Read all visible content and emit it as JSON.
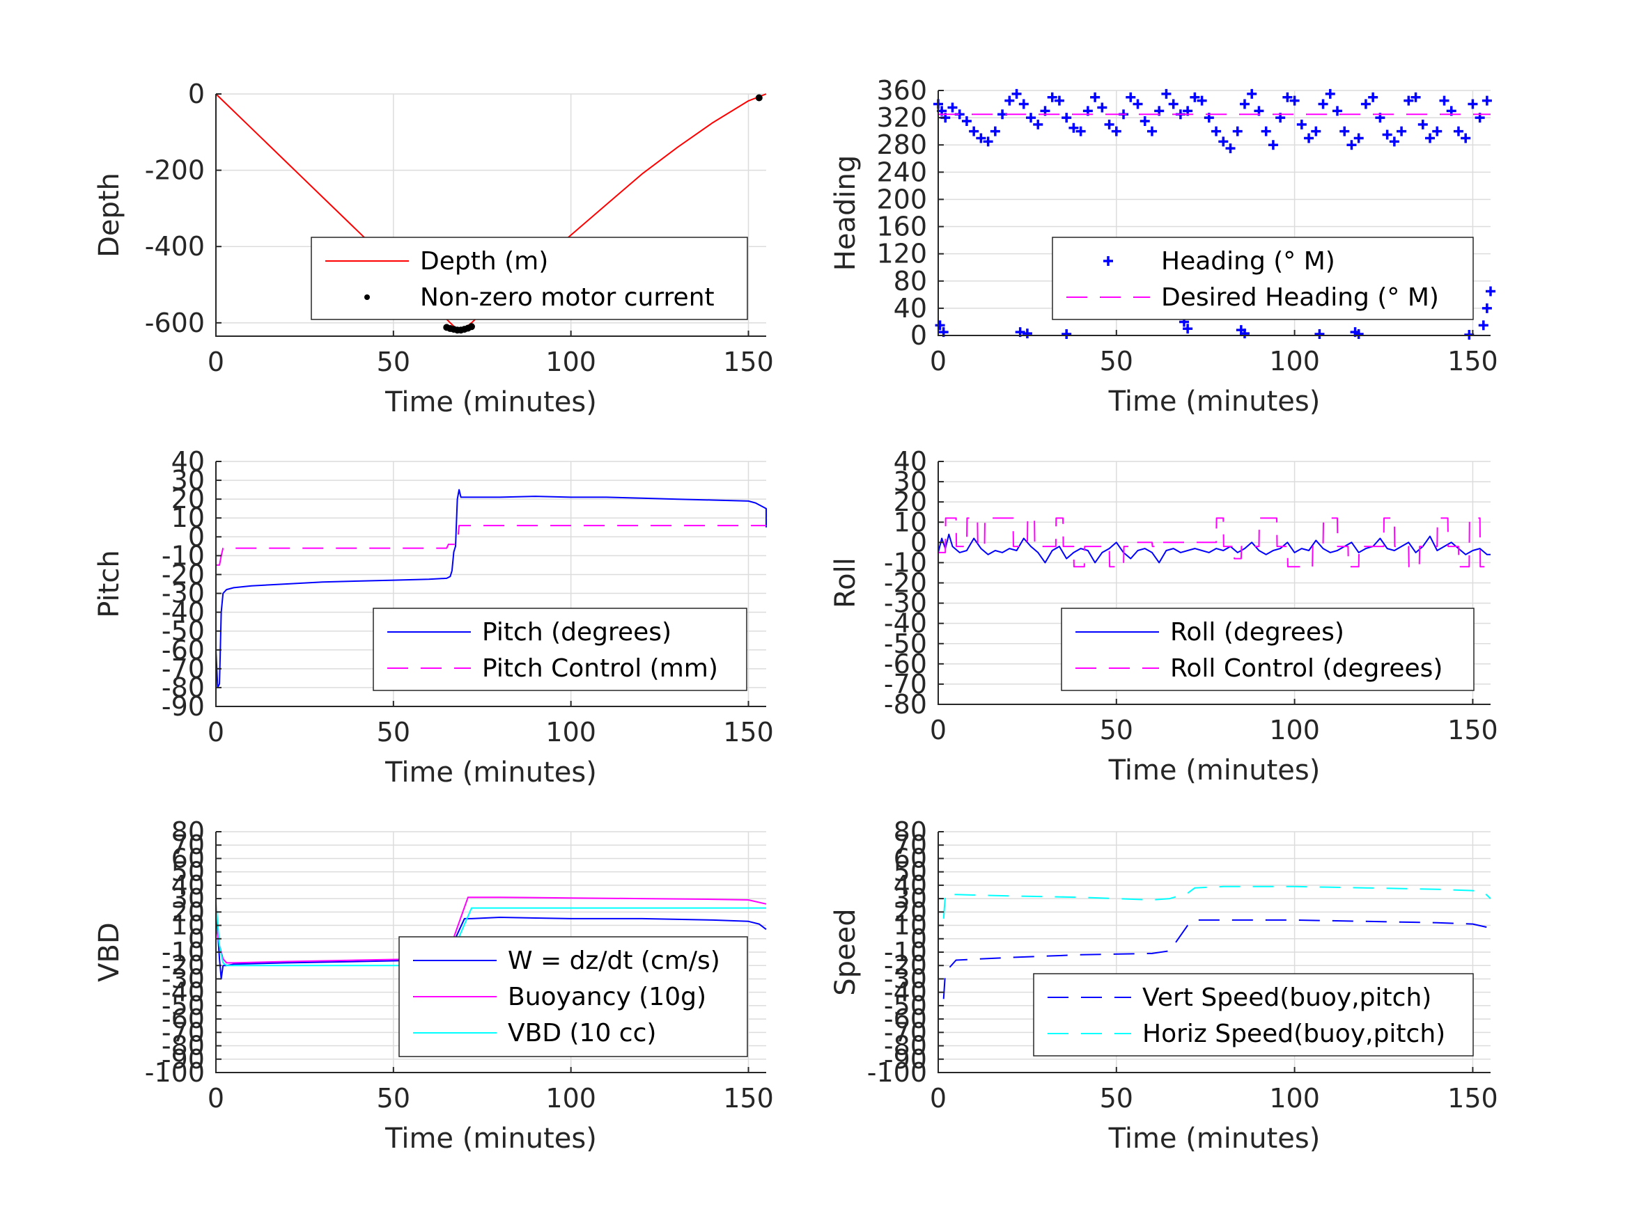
{
  "chart_data": [
    {
      "id": "depth",
      "type": "line",
      "xlabel": "Time (minutes)",
      "ylabel": "Depth",
      "xlim": [
        0,
        155
      ],
      "ylim": [
        -635,
        0
      ],
      "xticks": [
        0,
        50,
        100,
        150
      ],
      "yticks": [
        0,
        -200,
        -400,
        -600
      ],
      "grid": true,
      "legend": "lower-right",
      "series": [
        {
          "name": "Depth (m)",
          "color": "#ff0000",
          "style": "solid",
          "x": [
            0,
            10,
            20,
            30,
            40,
            50,
            60,
            66,
            68,
            70,
            72,
            80,
            90,
            100,
            110,
            120,
            130,
            140,
            150,
            155
          ],
          "y": [
            0,
            -90,
            -180,
            -270,
            -360,
            -450,
            -545,
            -600,
            -618,
            -615,
            -600,
            -530,
            -450,
            -370,
            -290,
            -210,
            -140,
            -75,
            -18,
            0
          ]
        },
        {
          "name": "Non-zero motor current",
          "color": "#000000",
          "style": "dot",
          "x": [
            65,
            66,
            67,
            68,
            69,
            70,
            71,
            72,
            153
          ],
          "y": [
            -612,
            -615,
            -617,
            -619,
            -619,
            -617,
            -614,
            -610,
            -10
          ]
        }
      ]
    },
    {
      "id": "heading",
      "type": "scatter",
      "xlabel": "Time (minutes)",
      "ylabel": "Heading",
      "xlim": [
        0,
        155
      ],
      "ylim": [
        0,
        360
      ],
      "xticks": [
        0,
        50,
        100,
        150
      ],
      "yticks": [
        0,
        40,
        80,
        120,
        160,
        200,
        240,
        280,
        320,
        360
      ],
      "grid": true,
      "legend": "lower-right",
      "series": [
        {
          "name": "Heading (° M)",
          "color": "#0000ff",
          "style": "plus",
          "x": [
            0,
            1,
            2,
            4,
            6,
            8,
            10,
            12,
            14,
            16,
            18,
            20,
            22,
            24,
            26,
            28,
            30,
            32,
            34,
            36,
            38,
            40,
            42,
            44,
            46,
            48,
            50,
            52,
            54,
            56,
            58,
            60,
            62,
            64,
            66,
            68,
            70,
            72,
            74,
            76,
            78,
            80,
            82,
            84,
            86,
            88,
            90,
            92,
            94,
            96,
            98,
            100,
            102,
            104,
            106,
            108,
            110,
            112,
            114,
            116,
            118,
            120,
            122,
            124,
            126,
            128,
            130,
            132,
            134,
            136,
            138,
            140,
            142,
            144,
            146,
            148,
            150,
            152,
            154,
            0.5,
            1.5,
            23,
            25,
            36,
            69,
            70,
            85,
            86,
            107,
            117,
            118,
            149,
            153,
            154,
            155
          ],
          "y": [
            340,
            330,
            320,
            335,
            325,
            315,
            300,
            290,
            285,
            300,
            325,
            345,
            355,
            340,
            320,
            310,
            330,
            350,
            345,
            320,
            305,
            300,
            330,
            350,
            335,
            310,
            300,
            325,
            350,
            340,
            315,
            300,
            330,
            355,
            340,
            325,
            330,
            350,
            345,
            320,
            300,
            285,
            275,
            300,
            340,
            355,
            330,
            300,
            280,
            320,
            350,
            345,
            310,
            290,
            300,
            340,
            355,
            330,
            300,
            280,
            290,
            340,
            350,
            320,
            295,
            285,
            300,
            345,
            350,
            310,
            290,
            300,
            345,
            330,
            300,
            290,
            340,
            320,
            345,
            15,
            5,
            5,
            3,
            2,
            20,
            10,
            8,
            3,
            2,
            5,
            2,
            1,
            15,
            40,
            65
          ]
        },
        {
          "name": "Desired Heading (° M)",
          "color": "#ff00ff",
          "style": "dashed",
          "x": [
            0,
            155
          ],
          "y": [
            325,
            325
          ]
        }
      ]
    },
    {
      "id": "pitch",
      "type": "line",
      "xlabel": "Time (minutes)",
      "ylabel": "Pitch",
      "xlim": [
        0,
        155
      ],
      "ylim": [
        -90,
        40
      ],
      "xticks": [
        0,
        50,
        100,
        150
      ],
      "yticks": [
        40,
        30,
        20,
        10,
        0,
        -10,
        -20,
        -30,
        -40,
        -50,
        -60,
        -70,
        -80,
        -90
      ],
      "grid": true,
      "legend": "lower-right",
      "series": [
        {
          "name": "Pitch (degrees)",
          "color": "#0000ff",
          "style": "solid",
          "x": [
            0,
            0.5,
            1,
            1.5,
            2,
            3,
            5,
            10,
            20,
            30,
            40,
            50,
            60,
            65,
            66,
            66.5,
            67,
            67.5,
            68,
            68.5,
            69,
            70,
            80,
            90,
            100,
            110,
            120,
            130,
            140,
            150,
            152,
            154,
            155,
            155
          ],
          "y": [
            -60,
            -80,
            -78,
            -40,
            -30,
            -28,
            -27,
            -26,
            -25,
            -24,
            -23.5,
            -23,
            -22.5,
            -22,
            -21,
            -18,
            -8,
            -5,
            20,
            25,
            21,
            21,
            21,
            21.5,
            21,
            21,
            20.5,
            20,
            19.5,
            19,
            18,
            16,
            15,
            5
          ]
        },
        {
          "name": "Pitch Control (mm)",
          "color": "#ff00ff",
          "style": "dashed",
          "x": [
            0,
            1,
            1.5,
            2,
            65,
            65.5,
            68,
            68.5,
            70,
            155
          ],
          "y": [
            -15,
            -15,
            -10,
            -6,
            -6,
            -4,
            -4,
            6,
            6,
            6
          ]
        }
      ]
    },
    {
      "id": "roll",
      "type": "line",
      "xlabel": "Time (minutes)",
      "ylabel": "Roll",
      "xlim": [
        0,
        155
      ],
      "ylim": [
        -80,
        40
      ],
      "xticks": [
        0,
        50,
        100,
        150
      ],
      "yticks": [
        40,
        30,
        20,
        10,
        0,
        -10,
        -20,
        -30,
        -40,
        -50,
        -60,
        -70,
        -80
      ],
      "grid": true,
      "legend": "lower-right",
      "series": [
        {
          "name": "Roll (degrees)",
          "color": "#0000ff",
          "style": "solid",
          "x": [
            0,
            1,
            2,
            3,
            4,
            6,
            8,
            10,
            12,
            14,
            16,
            18,
            20,
            22,
            24,
            26,
            28,
            30,
            32,
            34,
            36,
            38,
            40,
            42,
            44,
            46,
            48,
            50,
            52,
            54,
            56,
            58,
            60,
            62,
            64,
            66,
            68,
            70,
            72,
            74,
            76,
            78,
            80,
            82,
            84,
            86,
            88,
            90,
            92,
            94,
            96,
            98,
            100,
            102,
            104,
            106,
            108,
            110,
            112,
            114,
            116,
            118,
            120,
            122,
            124,
            126,
            128,
            130,
            132,
            134,
            136,
            138,
            140,
            142,
            144,
            146,
            148,
            150,
            152,
            154,
            155
          ],
          "y": [
            -5,
            2,
            -3,
            4,
            -2,
            -5,
            -4,
            2,
            -3,
            -6,
            -4,
            -5,
            -3,
            -4,
            2,
            -2,
            -5,
            -10,
            -4,
            -2,
            -8,
            -5,
            -3,
            -4,
            -10,
            -5,
            -3,
            0,
            -5,
            -8,
            -4,
            -3,
            -5,
            -10,
            -4,
            -3,
            -5,
            -4,
            -3,
            -4,
            -5,
            -3,
            -4,
            -2,
            -5,
            -3,
            0,
            -4,
            -6,
            -4,
            -3,
            0,
            -5,
            -3,
            -4,
            1,
            -3,
            -5,
            -4,
            -2,
            0,
            -5,
            -3,
            -2,
            2,
            -3,
            -4,
            -2,
            0,
            -5,
            -2,
            3,
            -4,
            -2,
            0,
            -3,
            -6,
            -4,
            -3,
            -6,
            -6
          ]
        },
        {
          "name": "Roll Control (degrees)",
          "color": "#ff00ff",
          "style": "dashed",
          "x": [
            0,
            2,
            2.1,
            5,
            5.1,
            8,
            8.1,
            11,
            11.1,
            13,
            13.1,
            21,
            21.1,
            25,
            25.1,
            27,
            27.1,
            33,
            33.1,
            35,
            35.1,
            38,
            38.1,
            41,
            41.1,
            48,
            48.1,
            52,
            52.1,
            55,
            55.1,
            60,
            60.1,
            63,
            63.1,
            78,
            78.1,
            80,
            80.1,
            83,
            83.1,
            85,
            85.1,
            90,
            90.1,
            95,
            95.1,
            98,
            98.1,
            105,
            105.1,
            108,
            108.1,
            112,
            112.1,
            115,
            115.1,
            118,
            118.1,
            125,
            125.1,
            128,
            128.1,
            132,
            132.1,
            135,
            135.1,
            140,
            140.1,
            143,
            143.1,
            146,
            146.1,
            149,
            149.1,
            152,
            152.1,
            155
          ],
          "y": [
            -5,
            -5,
            12,
            12,
            -2,
            -2,
            12,
            12,
            -2,
            -2,
            12,
            12,
            -2,
            -2,
            12,
            12,
            -2,
            -2,
            12,
            12,
            -2,
            -2,
            -12,
            -12,
            -2,
            -2,
            -12,
            -12,
            -2,
            -2,
            0,
            0,
            -2,
            -2,
            0,
            0,
            12,
            12,
            -2,
            -2,
            -8,
            -8,
            -2,
            -2,
            12,
            12,
            -2,
            -2,
            -12,
            -12,
            -2,
            -2,
            12,
            12,
            -2,
            -2,
            -12,
            -12,
            -2,
            -2,
            12,
            12,
            -2,
            -2,
            -12,
            -12,
            -2,
            -2,
            12,
            12,
            -2,
            -2,
            -12,
            -12,
            12,
            12,
            -12,
            -12
          ]
        }
      ]
    },
    {
      "id": "vbd",
      "type": "line",
      "xlabel": "Time (minutes)",
      "ylabel": "VBD",
      "xlim": [
        0,
        155
      ],
      "ylim": [
        -100,
        80
      ],
      "xticks": [
        0,
        50,
        100,
        150
      ],
      "yticks": [
        80,
        70,
        60,
        50,
        40,
        30,
        20,
        10,
        0,
        -10,
        -20,
        -30,
        -40,
        -50,
        -60,
        -70,
        -80,
        -90,
        -100
      ],
      "ytick_labels": [
        "80",
        "70",
        "60",
        "50",
        "40",
        "30",
        "20",
        "10",
        "0",
        "-10",
        "-20",
        "-30",
        "-40",
        "-50",
        "-60",
        "-70",
        "-80",
        "-90",
        "-100"
      ],
      "grid": true,
      "legend": "lower-right",
      "series": [
        {
          "name": "W = dz/dt (cm/s)",
          "color": "#0000ff",
          "style": "solid",
          "x": [
            0,
            0.5,
            1,
            1.5,
            2,
            3,
            5,
            20,
            40,
            60,
            64,
            65,
            70,
            72,
            80,
            100,
            120,
            140,
            150,
            153,
            155
          ],
          "y": [
            20,
            5,
            -15,
            -30,
            -20,
            -20,
            -19,
            -18,
            -17,
            -16,
            -14,
            -14,
            15,
            15,
            16,
            15,
            15,
            14,
            13,
            11,
            7
          ]
        },
        {
          "name": "Buoyancy (10g)",
          "color": "#ff00ff",
          "style": "solid",
          "x": [
            0,
            1,
            2,
            3,
            5,
            20,
            40,
            60,
            65,
            71,
            72,
            80,
            100,
            120,
            140,
            150,
            155
          ],
          "y": [
            10,
            -5,
            -15,
            -18,
            -18,
            -17,
            -16,
            -15,
            -14,
            31,
            31,
            31,
            30.5,
            30,
            29.5,
            29,
            26
          ]
        },
        {
          "name": "VBD (10 cc)",
          "color": "#00ffff",
          "style": "solid",
          "x": [
            0,
            1,
            2,
            3,
            5,
            20,
            40,
            60,
            65,
            72,
            73,
            80,
            100,
            120,
            140,
            150,
            155
          ],
          "y": [
            28,
            -5,
            -18,
            -20,
            -20,
            -20,
            -20,
            -20,
            -20,
            23,
            23,
            23,
            23,
            23,
            23,
            23,
            23
          ]
        }
      ]
    },
    {
      "id": "speed",
      "type": "line",
      "xlabel": "Time (minutes)",
      "ylabel": "Speed",
      "xlim": [
        0,
        155
      ],
      "ylim": [
        -100,
        80
      ],
      "xticks": [
        0,
        50,
        100,
        150
      ],
      "yticks": [
        80,
        70,
        60,
        50,
        40,
        30,
        20,
        10,
        0,
        -10,
        -20,
        -30,
        -40,
        -50,
        -60,
        -70,
        -80,
        -90,
        -100
      ],
      "ytick_labels": [
        "80",
        "70",
        "60",
        "50",
        "40",
        "30",
        "20",
        "10",
        "0",
        "-10",
        "-20",
        "-30",
        "-40",
        "-50",
        "-60",
        "-70",
        "-80",
        "-90",
        "-100"
      ],
      "grid": true,
      "legend": "lower-right",
      "series": [
        {
          "name": "Vert Speed(buoy,pitch)",
          "color": "#0000ff",
          "style": "dashed",
          "x": [
            1.5,
            2,
            5,
            20,
            40,
            60,
            65,
            70,
            72,
            80,
            100,
            120,
            140,
            150,
            155
          ],
          "y": [
            -45,
            -25,
            -16,
            -14,
            -12,
            -11,
            -9,
            10,
            14,
            14,
            14,
            13,
            12,
            11,
            8
          ]
        },
        {
          "name": "Horiz Speed(buoy,pitch)",
          "color": "#00ffff",
          "style": "dashed",
          "x": [
            1.5,
            2,
            5,
            20,
            40,
            60,
            65,
            70,
            72,
            80,
            100,
            120,
            140,
            150,
            153,
            155
          ],
          "y": [
            15,
            33,
            33,
            32,
            31,
            29,
            30,
            34,
            38,
            39,
            39,
            38,
            37,
            36,
            35,
            30
          ]
        }
      ]
    }
  ]
}
